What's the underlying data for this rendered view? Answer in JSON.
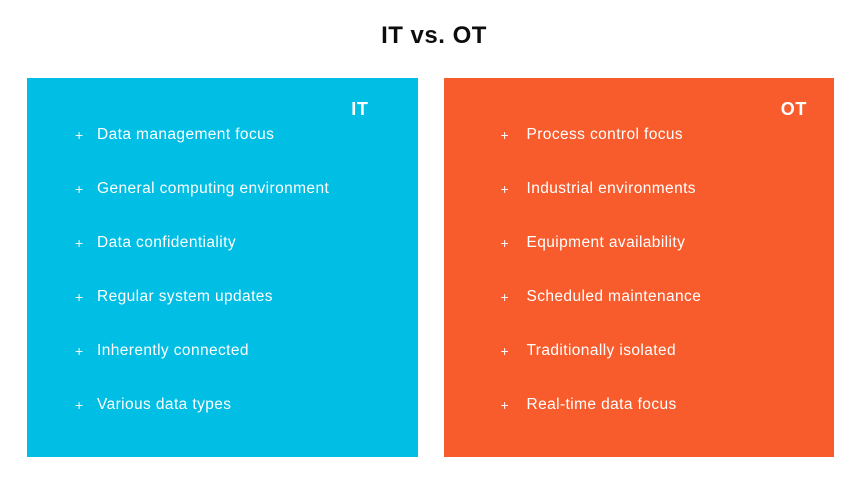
{
  "title": "IT vs. OT",
  "bullet": "+",
  "panels": [
    {
      "label": "IT",
      "color": "#00BEE4",
      "items": [
        "Data management focus",
        "General computing environment",
        "Data confidentiality",
        "Regular system updates",
        "Inherently connected",
        "Various data types"
      ]
    },
    {
      "label": "OT",
      "color": "#F85C2D",
      "items": [
        "Process control focus",
        "Industrial environments",
        "Equipment availability",
        "Scheduled maintenance",
        "Traditionally isolated",
        "Real-time data focus"
      ]
    }
  ],
  "text_color": "#FFFFFF",
  "title_color": "#0D0D0D"
}
